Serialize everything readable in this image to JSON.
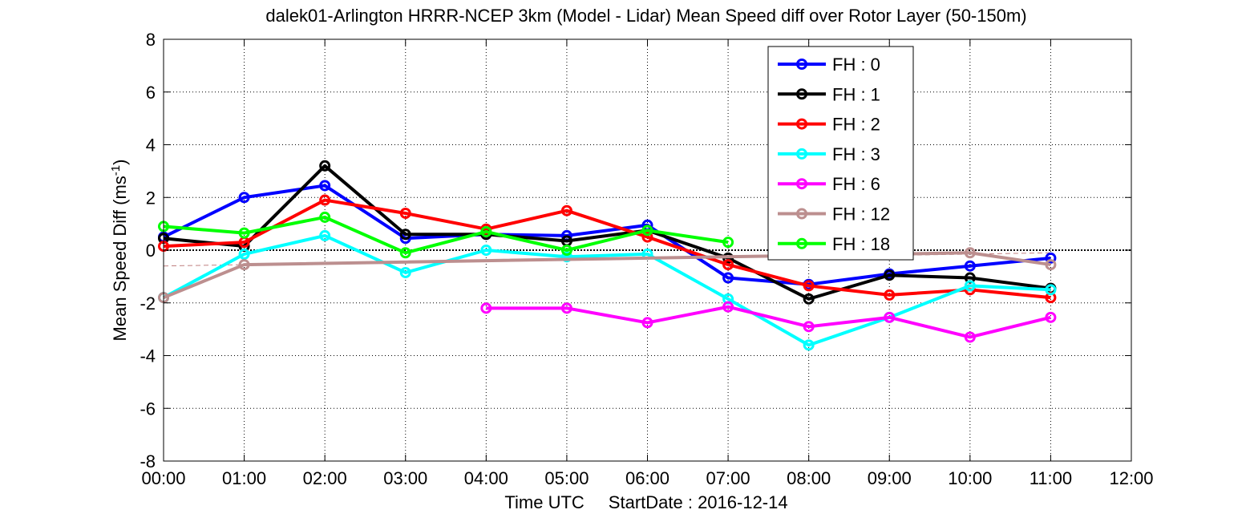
{
  "chart_data": {
    "type": "line",
    "title": "dalek01-Arlington HRRR-NCEP 3km (Model - Lidar) Mean Speed diff over Rotor Layer (50-150m)",
    "ylabel_main": "Mean Speed Diff (ms",
    "ylabel_sup": "-1",
    "ylabel_end": ")",
    "xlabel_left": "Time UTC",
    "xlabel_right": "StartDate : 2016-12-14",
    "x": [
      "00:00",
      "01:00",
      "02:00",
      "03:00",
      "04:00",
      "05:00",
      "06:00",
      "07:00",
      "08:00",
      "09:00",
      "10:00",
      "11:00",
      "12:00"
    ],
    "xlim": [
      0,
      12
    ],
    "ylim": [
      -8,
      8
    ],
    "yticks": [
      -8,
      -6,
      -4,
      -2,
      0,
      2,
      4,
      6,
      8
    ],
    "grid": true,
    "legend_position": "top-right",
    "zero_line": true,
    "reference_line": {
      "style": "dashed",
      "color": "#c08080",
      "x": [
        0,
        1,
        2,
        3,
        4,
        5,
        6,
        7,
        8,
        9,
        10,
        11
      ],
      "y": [
        -0.6,
        -0.55,
        -0.5,
        -0.45,
        -0.4,
        -0.35,
        -0.3,
        -0.25,
        -0.2,
        -0.2,
        -0.15,
        -0.1
      ]
    },
    "series": [
      {
        "name": "FH : 0",
        "color": "#0000ff",
        "x": [
          0,
          1,
          2,
          3,
          4,
          5,
          6,
          7,
          8,
          9,
          10,
          11
        ],
        "y": [
          0.5,
          2.0,
          2.45,
          0.45,
          0.6,
          0.55,
          0.95,
          -1.05,
          -1.3,
          -0.9,
          -0.6,
          -0.3
        ]
      },
      {
        "name": "FH : 1",
        "color": "#000000",
        "x": [
          0,
          1,
          2,
          3,
          4,
          5,
          6,
          7,
          8,
          9,
          10,
          11
        ],
        "y": [
          0.45,
          0.15,
          3.2,
          0.6,
          0.6,
          0.35,
          0.75,
          -0.3,
          -1.85,
          -0.95,
          -1.05,
          -1.45
        ]
      },
      {
        "name": "FH : 2",
        "color": "#ff0000",
        "x": [
          0,
          1,
          2,
          3,
          4,
          5,
          6,
          7,
          8,
          9,
          10,
          11
        ],
        "y": [
          0.15,
          0.3,
          1.9,
          1.4,
          0.8,
          1.5,
          0.5,
          -0.55,
          -1.35,
          -1.7,
          -1.5,
          -1.8
        ]
      },
      {
        "name": "FH : 3",
        "color": "#00ffff",
        "x": [
          0,
          1,
          2,
          3,
          4,
          5,
          6,
          7,
          8,
          9,
          10,
          11
        ],
        "y": [
          -1.8,
          -0.15,
          0.55,
          -0.85,
          0.0,
          -0.25,
          -0.15,
          -1.85,
          -3.6,
          -2.55,
          -1.35,
          -1.5
        ]
      },
      {
        "name": "FH : 6",
        "color": "#ff00ff",
        "x": [
          4,
          5,
          6,
          7,
          8,
          9,
          10,
          11
        ],
        "y": [
          -2.2,
          -2.2,
          -2.75,
          -2.15,
          -2.9,
          -2.55,
          -3.3,
          -2.55
        ]
      },
      {
        "name": "FH : 12",
        "color": "#bc8f8f",
        "x": [
          0,
          1,
          10,
          11
        ],
        "y": [
          -1.8,
          -0.55,
          -0.1,
          -0.55
        ]
      },
      {
        "name": "FH : 18",
        "color": "#00ff00",
        "x": [
          0,
          1,
          2,
          3,
          4,
          5,
          6,
          7
        ],
        "y": [
          0.9,
          0.65,
          1.25,
          -0.1,
          0.7,
          0.0,
          0.75,
          0.3
        ]
      }
    ]
  }
}
